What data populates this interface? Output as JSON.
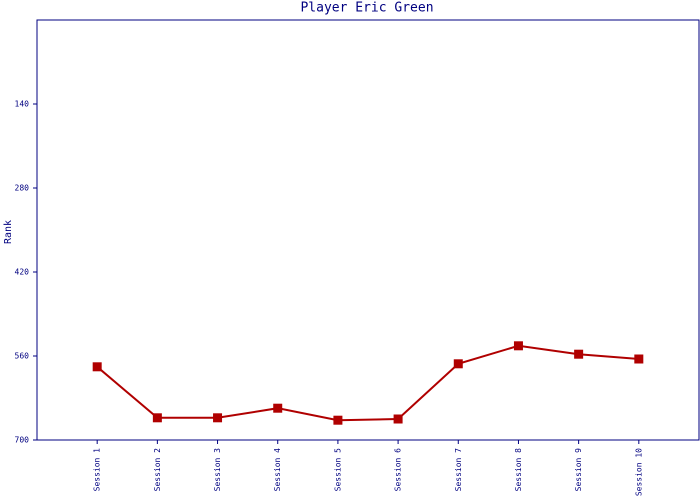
{
  "chart_data": {
    "type": "line",
    "title": "Player Eric Green",
    "y_label": "Rank",
    "categories": [
      "Session 1",
      "Session 2",
      "Session 3",
      "Session 4",
      "Session 5",
      "Session 6",
      "Session 7",
      "Session 8",
      "Session 9",
      "Session 10"
    ],
    "values": [
      578,
      663,
      663,
      647,
      667,
      665,
      573,
      543,
      557,
      565
    ],
    "color": "#b00000",
    "ylim": [
      700,
      0
    ],
    "yticks": [
      140,
      280,
      420,
      560,
      700
    ]
  }
}
